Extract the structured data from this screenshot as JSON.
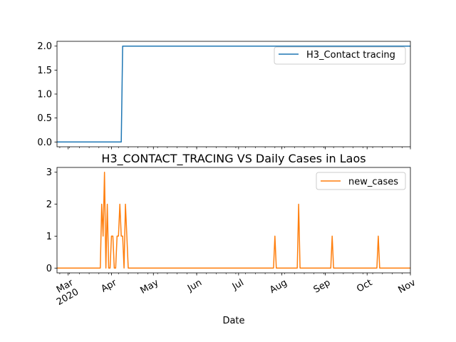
{
  "chart_data": [
    {
      "type": "line",
      "title": "",
      "xlabel": "",
      "ylabel": "",
      "x_range": [
        "2020-02-22",
        "2020-11-01"
      ],
      "ylim": [
        -0.1,
        2.1
      ],
      "yticks": [
        "0.0",
        "0.5",
        "1.0",
        "1.5",
        "2.0"
      ],
      "legend_placement": "top-right",
      "grid": false,
      "series": [
        {
          "name": "H3_Contact tracing",
          "color": "#1f77b4",
          "points": [
            [
              "2020-02-22",
              0
            ],
            [
              "2020-04-08",
              0
            ],
            [
              "2020-04-09",
              2
            ],
            [
              "2020-11-01",
              2
            ]
          ]
        }
      ]
    },
    {
      "type": "line",
      "title": "H3_CONTACT_TRACING VS Daily Cases in Laos",
      "xlabel": "Date",
      "ylabel": "",
      "x_range": [
        "2020-02-22",
        "2020-11-01"
      ],
      "ylim": [
        -0.15,
        3.15
      ],
      "yticks": [
        "0",
        "1",
        "2",
        "3"
      ],
      "legend_placement": "top-right",
      "grid": false,
      "xtick_labels": [
        {
          "date": "2020-03-01",
          "label": "Mar",
          "sublabel": "2020"
        },
        {
          "date": "2020-04-01",
          "label": "Apr"
        },
        {
          "date": "2020-05-01",
          "label": "May"
        },
        {
          "date": "2020-06-01",
          "label": "Jun"
        },
        {
          "date": "2020-07-01",
          "label": "Jul"
        },
        {
          "date": "2020-08-01",
          "label": "Aug"
        },
        {
          "date": "2020-09-01",
          "label": "Sep"
        },
        {
          "date": "2020-10-01",
          "label": "Oct"
        },
        {
          "date": "2020-11-01",
          "label": "Nov"
        }
      ],
      "series": [
        {
          "name": "new_cases",
          "color": "#ff7f0e",
          "points": [
            [
              "2020-02-22",
              0
            ],
            [
              "2020-03-24",
              0
            ],
            [
              "2020-03-25",
              2
            ],
            [
              "2020-03-26",
              1
            ],
            [
              "2020-03-27",
              3
            ],
            [
              "2020-03-28",
              0
            ],
            [
              "2020-03-29",
              2
            ],
            [
              "2020-03-30",
              0
            ],
            [
              "2020-03-31",
              0
            ],
            [
              "2020-04-01",
              1
            ],
            [
              "2020-04-02",
              1
            ],
            [
              "2020-04-03",
              0
            ],
            [
              "2020-04-04",
              0
            ],
            [
              "2020-04-05",
              1
            ],
            [
              "2020-04-06",
              1
            ],
            [
              "2020-04-07",
              2
            ],
            [
              "2020-04-08",
              1
            ],
            [
              "2020-04-09",
              1
            ],
            [
              "2020-04-10",
              0
            ],
            [
              "2020-04-11",
              2
            ],
            [
              "2020-04-12",
              1
            ],
            [
              "2020-04-13",
              0
            ],
            [
              "2020-07-26",
              0
            ],
            [
              "2020-07-27",
              1
            ],
            [
              "2020-07-28",
              0
            ],
            [
              "2020-08-12",
              0
            ],
            [
              "2020-08-13",
              2
            ],
            [
              "2020-08-14",
              0
            ],
            [
              "2020-09-05",
              0
            ],
            [
              "2020-09-06",
              1
            ],
            [
              "2020-09-07",
              0
            ],
            [
              "2020-10-08",
              0
            ],
            [
              "2020-10-09",
              1
            ],
            [
              "2020-10-10",
              0
            ],
            [
              "2020-11-01",
              0
            ]
          ]
        }
      ]
    }
  ]
}
